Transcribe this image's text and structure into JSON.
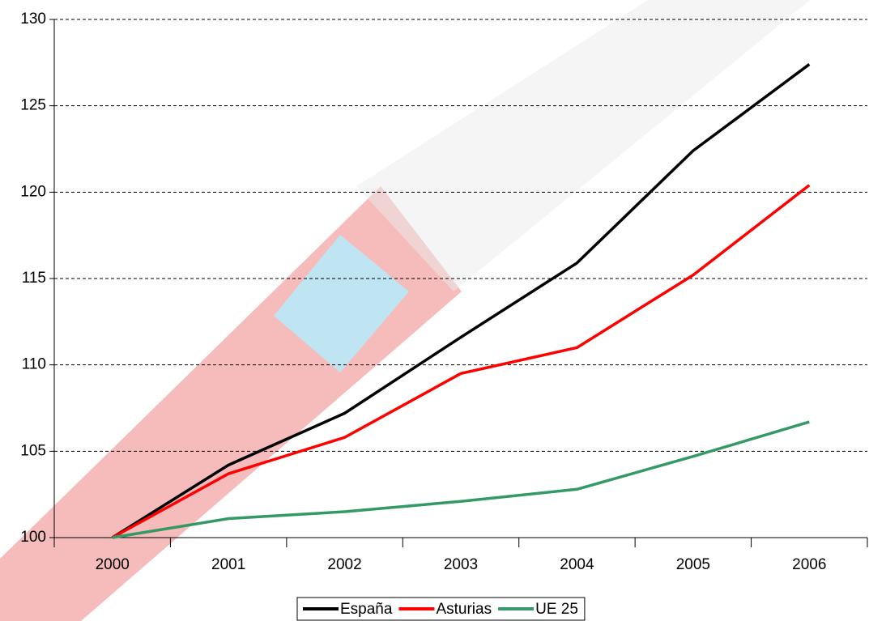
{
  "chart_data": {
    "type": "line",
    "categories": [
      "2000",
      "2001",
      "2002",
      "2003",
      "2004",
      "2005",
      "2006"
    ],
    "series": [
      {
        "name": "España",
        "color": "#000000",
        "values": [
          100,
          104.2,
          107.2,
          111.6,
          115.9,
          122.4,
          127.4
        ]
      },
      {
        "name": "Asturias",
        "color": "#ff0000",
        "values": [
          100,
          103.7,
          105.8,
          109.5,
          111.0,
          115.2,
          120.4
        ]
      },
      {
        "name": "UE 25",
        "color": "#339966",
        "values": [
          100,
          101.1,
          101.5,
          102.1,
          102.8,
          104.7,
          106.7
        ]
      }
    ],
    "ylim": [
      100,
      130
    ],
    "yticks": [
      100,
      105,
      110,
      115,
      120,
      125,
      130
    ],
    "grid": true,
    "legend": "bottom"
  }
}
